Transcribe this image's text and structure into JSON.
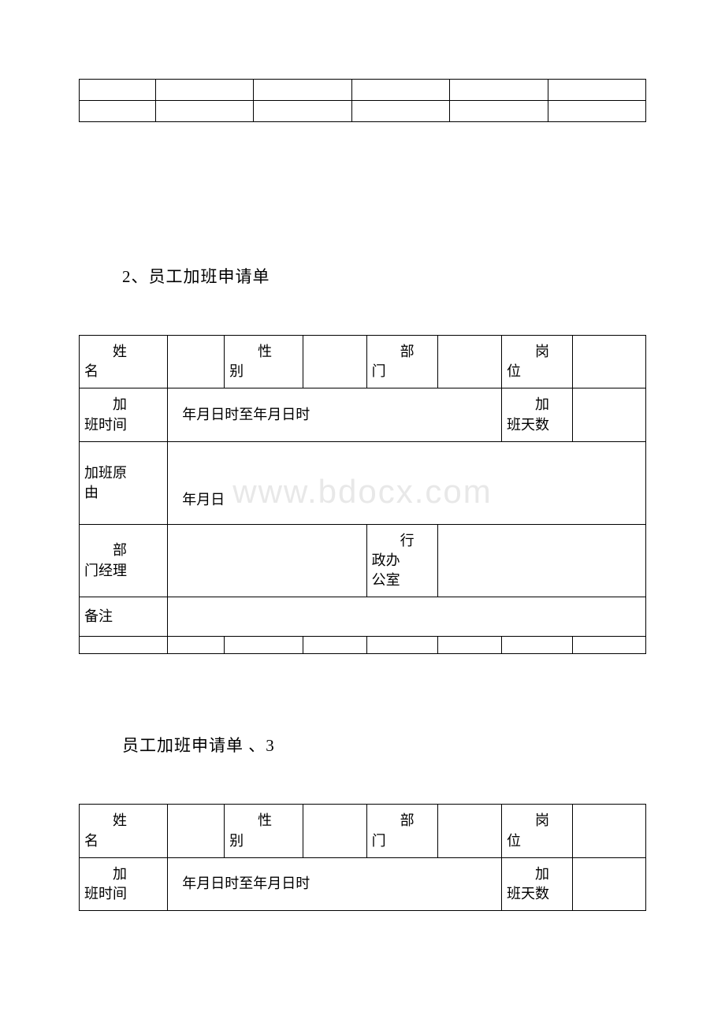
{
  "watermark": "www.bdocx.com",
  "section2": {
    "title": "2、员工加班申请单",
    "labels": {
      "name": "姓名",
      "gender": "性别",
      "dept": "部门",
      "position": "岗位",
      "overtime_period": "加班时间",
      "period_value": "年月日时至年月日时",
      "overtime_days": "加班天数",
      "overtime_reason": "加班原由",
      "reason_value": "年月日",
      "dept_manager": "部门经理",
      "admin_office": "行政办公室",
      "remark": "备注"
    }
  },
  "section3": {
    "title": "员工加班申请单 、3",
    "labels": {
      "name": "姓名",
      "gender": "性别",
      "dept": "部门",
      "position": "岗位",
      "overtime_period": "加班时间",
      "period_value": "年月日时至年月日时",
      "overtime_days": "加班天数"
    }
  }
}
